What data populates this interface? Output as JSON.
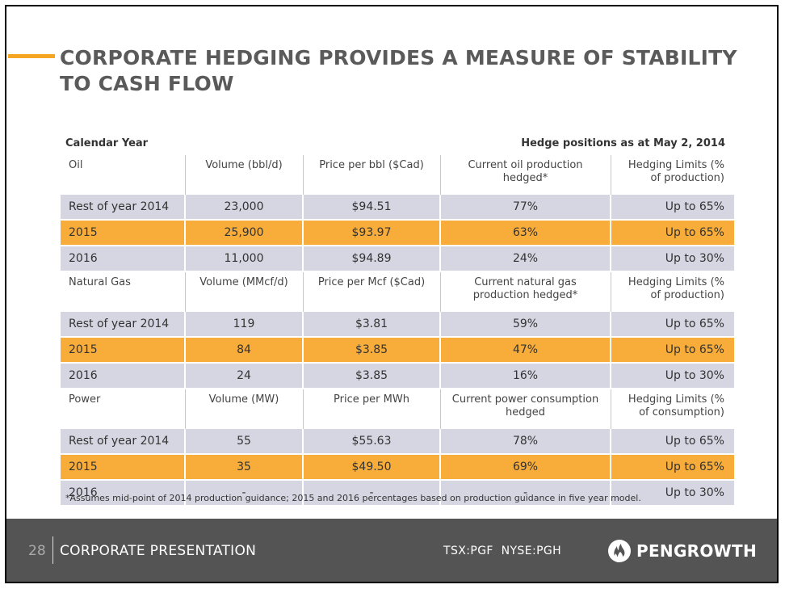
{
  "title": "CORPORATE HEDGING PROVIDES A MEASURE OF  STABILITY TO CASH FLOW",
  "table_meta": {
    "calendar_year_label": "Calendar Year",
    "hedge_positions_label": "Hedge positions as at May 2, 2014"
  },
  "sections": [
    {
      "header": [
        "Oil",
        "Volume (bbl/d)",
        "Price per bbl ($Cad)",
        "Current oil production hedged*",
        "Hedging Limits (% of production)"
      ],
      "rows": [
        [
          "Rest of year 2014",
          "23,000",
          "$94.51",
          "77%",
          "Up to 65%"
        ],
        [
          "2015",
          "25,900",
          "$93.97",
          "63%",
          "Up to 65%"
        ],
        [
          "2016",
          "11,000",
          "$94.89",
          "24%",
          "Up to 30%"
        ]
      ]
    },
    {
      "header": [
        "Natural Gas",
        "Volume (MMcf/d)",
        "Price per Mcf ($Cad)",
        "Current natural gas production hedged*",
        "Hedging Limits (% of production)"
      ],
      "rows": [
        [
          "Rest of year 2014",
          "119",
          "$3.81",
          "59%",
          "Up to 65%"
        ],
        [
          "2015",
          "84",
          "$3.85",
          "47%",
          "Up to 65%"
        ],
        [
          "2016",
          "24",
          "$3.85",
          "16%",
          "Up to 30%"
        ]
      ]
    },
    {
      "header": [
        "Power",
        "Volume (MW)",
        "Price per MWh",
        "Current power consumption hedged",
        "Hedging Limits (% of consumption)"
      ],
      "rows": [
        [
          "Rest of year 2014",
          "55",
          "$55.63",
          "78%",
          "Up to 65%"
        ],
        [
          "2015",
          "35",
          "$49.50",
          "69%",
          "Up to 65%"
        ],
        [
          "2016",
          "-",
          "-",
          "-",
          "Up to 30%"
        ]
      ]
    }
  ],
  "footnote": "*Assumes mid-point of 2014 production guidance; 2015 and 2016 percentages based on production guidance in five year model.",
  "footer": {
    "page_number": "28",
    "presentation_label": "CORPORATE PRESENTATION",
    "ticker": "TSX:PGF  NYSE:PGH",
    "logo_text": "PENGROWTH",
    "logo_icon": "pengrowth-flame-icon"
  },
  "colors": {
    "accent": "#f5a623",
    "row_highlight": "#f8ad3a",
    "row_gray": "#d6d6e3",
    "footer_bg": "#545454"
  }
}
